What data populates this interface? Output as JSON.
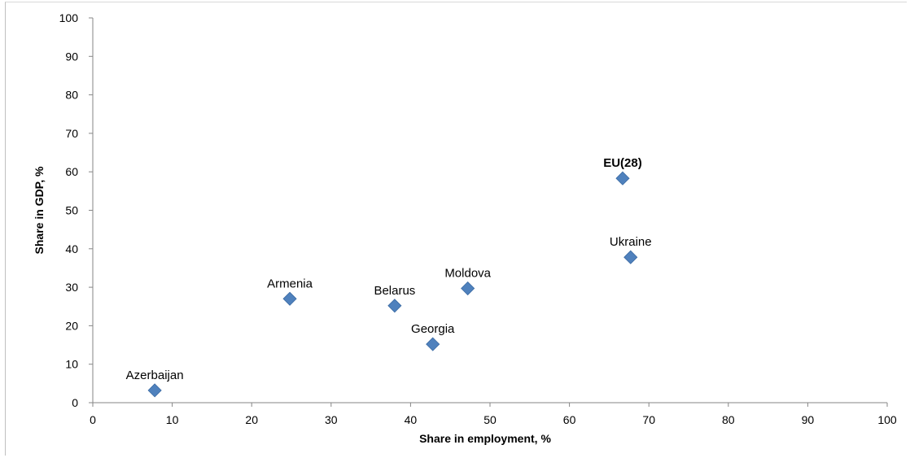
{
  "chart_data": {
    "type": "scatter",
    "title": "",
    "xlabel": "Share in employment, %",
    "ylabel": "Share in GDP, %",
    "xlim": [
      0,
      100
    ],
    "ylim": [
      0,
      100
    ],
    "xticks": [
      0,
      10,
      20,
      30,
      40,
      50,
      60,
      70,
      80,
      90,
      100
    ],
    "yticks": [
      0,
      10,
      20,
      30,
      40,
      50,
      60,
      70,
      80,
      90,
      100
    ],
    "grid": false,
    "legend": "none",
    "marker": "diamond",
    "color": "#4f81bd",
    "points": [
      {
        "label": "Azerbaijan",
        "x": 7.8,
        "y": 3.2,
        "bold": false
      },
      {
        "label": "Armenia",
        "x": 24.8,
        "y": 27.0,
        "bold": false
      },
      {
        "label": "Belarus",
        "x": 38.0,
        "y": 25.2,
        "bold": false
      },
      {
        "label": "Georgia",
        "x": 42.8,
        "y": 15.2,
        "bold": false
      },
      {
        "label": "Moldova",
        "x": 47.2,
        "y": 29.7,
        "bold": false
      },
      {
        "label": "EU(28)",
        "x": 66.7,
        "y": 58.3,
        "bold": true
      },
      {
        "label": "Ukraine",
        "x": 67.7,
        "y": 37.8,
        "bold": false
      }
    ]
  }
}
